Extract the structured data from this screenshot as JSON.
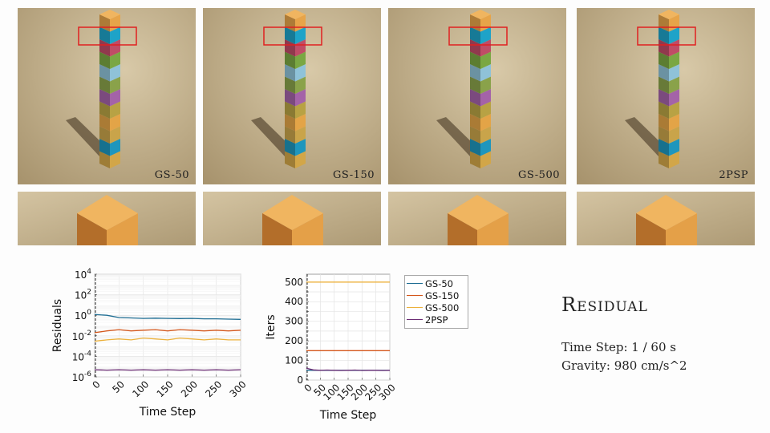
{
  "panels": [
    {
      "label": "GS-50"
    },
    {
      "label": "GS-150"
    },
    {
      "label": "GS-500"
    },
    {
      "label": "2PSP"
    }
  ],
  "scene_colors": {
    "floor": "#cdbb98",
    "block_top": "#f0b560",
    "block_left": "#b36e2a",
    "block_right": "#e4a048",
    "highlight_box": "#e02020",
    "stack": [
      "#d2a648",
      "#1e96bd",
      "#c9a44a",
      "#e3a447",
      "#b8a244",
      "#a463a8",
      "#8aa24a",
      "#8fc2d8",
      "#7aa743",
      "#c04c66",
      "#1ea3c8",
      "#e7a449"
    ]
  },
  "title": "Residual",
  "info": {
    "time_step": "Time Step: 1 / 60 s",
    "gravity": "Gravity: 980 cm/s^2"
  },
  "legend": [
    "GS-50",
    "GS-150",
    "GS-500",
    "2PSP"
  ],
  "chart_data": [
    {
      "type": "line",
      "xlabel": "Time Step",
      "ylabel": "Residuals",
      "xlim": [
        0,
        300
      ],
      "xticks": [
        "0",
        "50",
        "100",
        "150",
        "200",
        "250",
        "300"
      ],
      "ylim_log10": [
        -6,
        4
      ],
      "yticks": [
        {
          "base": "10",
          "exp": "4"
        },
        {
          "base": "10",
          "exp": "2"
        },
        {
          "base": "10",
          "exp": "0"
        },
        {
          "base": "10",
          "exp": "-2"
        },
        {
          "base": "10",
          "exp": "-4"
        },
        {
          "base": "10",
          "exp": "-6"
        }
      ],
      "log_scale_y": true,
      "grid": true,
      "series": [
        {
          "name": "GS-50",
          "color": "#1f6e94",
          "x": [
            0,
            25,
            50,
            75,
            100,
            125,
            150,
            175,
            200,
            225,
            250,
            275,
            300
          ],
          "y": [
            1.2,
            1.0,
            0.6,
            0.55,
            0.5,
            0.52,
            0.5,
            0.48,
            0.5,
            0.45,
            0.45,
            0.42,
            0.4
          ]
        },
        {
          "name": "GS-150",
          "color": "#d4571c",
          "x": [
            0,
            25,
            50,
            75,
            100,
            125,
            150,
            175,
            200,
            225,
            250,
            275,
            300
          ],
          "y": [
            0.02,
            0.03,
            0.04,
            0.03,
            0.035,
            0.04,
            0.03,
            0.04,
            0.035,
            0.03,
            0.035,
            0.03,
            0.035
          ]
        },
        {
          "name": "GS-500",
          "color": "#ecb13b",
          "x": [
            0,
            25,
            50,
            75,
            100,
            125,
            150,
            175,
            200,
            225,
            250,
            275,
            300
          ],
          "y": [
            0.003,
            0.004,
            0.005,
            0.004,
            0.006,
            0.005,
            0.004,
            0.006,
            0.005,
            0.004,
            0.005,
            0.004,
            0.004
          ]
        },
        {
          "name": "2PSP",
          "color": "#6b2c74",
          "x": [
            0,
            25,
            50,
            75,
            100,
            125,
            150,
            175,
            200,
            225,
            250,
            275,
            300
          ],
          "y": [
            5e-06,
            4.5e-06,
            5e-06,
            4.5e-06,
            5e-06,
            4.5e-06,
            5e-06,
            4.5e-06,
            5e-06,
            4.5e-06,
            5e-06,
            4.5e-06,
            5e-06
          ]
        }
      ]
    },
    {
      "type": "line",
      "xlabel": "Time Step",
      "ylabel": "Iters",
      "xlim": [
        0,
        300
      ],
      "xticks": [
        "0",
        "50",
        "100",
        "150",
        "200",
        "250",
        "300"
      ],
      "ylim": [
        0,
        540
      ],
      "yticks": [
        "0",
        "50",
        "100",
        "150",
        "200",
        "250",
        "300",
        "350",
        "400",
        "450",
        "500"
      ],
      "grid": true,
      "series": [
        {
          "name": "GS-50",
          "color": "#1f6e94",
          "x": [
            0,
            300
          ],
          "y": [
            50,
            50
          ]
        },
        {
          "name": "GS-150",
          "color": "#d4571c",
          "x": [
            0,
            300
          ],
          "y": [
            150,
            150
          ]
        },
        {
          "name": "GS-500",
          "color": "#ecb13b",
          "x": [
            0,
            300
          ],
          "y": [
            500,
            500
          ]
        },
        {
          "name": "2PSP",
          "color": "#6b2c74",
          "x": [
            0,
            25,
            50,
            75,
            100,
            125,
            150,
            175,
            200,
            225,
            250,
            275,
            300
          ],
          "y": [
            60,
            52,
            50,
            51,
            50,
            49,
            50,
            51,
            49,
            50,
            50,
            49,
            50
          ]
        }
      ]
    }
  ]
}
